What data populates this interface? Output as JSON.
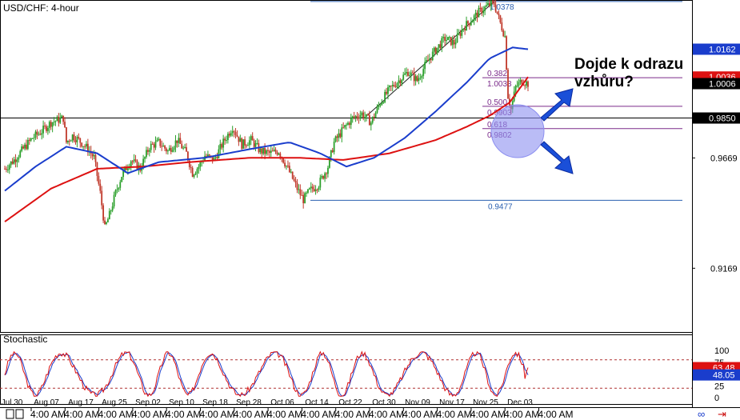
{
  "chart_data": {
    "type": "candlestick",
    "symbol_label": "USD/CHF: 4-hour",
    "main": {
      "ylim": [
        0.888,
        1.0385
      ],
      "ticks": [
        "1.0162",
        "0.9669",
        "0.9169"
      ],
      "price_labels": [
        {
          "text": "1.0162",
          "value": 1.0162,
          "color": "#1a3dcc"
        },
        {
          "text": "1.0036",
          "value": 1.0036,
          "color": "#dd1111"
        },
        {
          "text": "1.0006",
          "value": 1.0006,
          "color": "#000000"
        },
        {
          "text": "0.9850",
          "value": 0.985,
          "color": "#000000"
        }
      ],
      "horizontal_line": 0.985,
      "fibonacci": {
        "high": 1.0378,
        "low": 0.9477,
        "high_label": "1.0378",
        "low_label": "0.9477",
        "levels": [
          {
            "ratio": "0.382",
            "price": "1.0033",
            "value": 1.0033
          },
          {
            "ratio": "0.500",
            "price": "0.9903",
            "value": 0.9903
          },
          {
            "ratio": "0.618",
            "price": "0.9802",
            "value": 0.9802
          }
        ]
      },
      "candles_seed": [
        {
          "i": 0,
          "c": 0.962
        },
        {
          "i": 6,
          "c": 0.966
        },
        {
          "i": 12,
          "c": 0.971
        },
        {
          "i": 18,
          "c": 0.976
        },
        {
          "i": 24,
          "c": 0.979
        },
        {
          "i": 30,
          "c": 0.983
        },
        {
          "i": 34,
          "c": 0.984
        },
        {
          "i": 38,
          "c": 0.985
        },
        {
          "i": 40,
          "c": 0.974
        },
        {
          "i": 44,
          "c": 0.977
        },
        {
          "i": 48,
          "c": 0.975
        },
        {
          "i": 54,
          "c": 0.971
        },
        {
          "i": 58,
          "c": 0.967
        },
        {
          "i": 62,
          "c": 0.951
        },
        {
          "i": 65,
          "c": 0.935
        },
        {
          "i": 68,
          "c": 0.941
        },
        {
          "i": 72,
          "c": 0.951
        },
        {
          "i": 76,
          "c": 0.959
        },
        {
          "i": 82,
          "c": 0.966
        },
        {
          "i": 88,
          "c": 0.962
        },
        {
          "i": 94,
          "c": 0.972
        },
        {
          "i": 100,
          "c": 0.974
        },
        {
          "i": 106,
          "c": 0.97
        },
        {
          "i": 112,
          "c": 0.975
        },
        {
          "i": 118,
          "c": 0.969
        },
        {
          "i": 122,
          "c": 0.96
        },
        {
          "i": 126,
          "c": 0.963
        },
        {
          "i": 130,
          "c": 0.968
        },
        {
          "i": 136,
          "c": 0.966
        },
        {
          "i": 142,
          "c": 0.974
        },
        {
          "i": 148,
          "c": 0.981
        },
        {
          "i": 154,
          "c": 0.973
        },
        {
          "i": 160,
          "c": 0.975
        },
        {
          "i": 166,
          "c": 0.97
        },
        {
          "i": 172,
          "c": 0.969
        },
        {
          "i": 178,
          "c": 0.97
        },
        {
          "i": 184,
          "c": 0.962
        },
        {
          "i": 190,
          "c": 0.953
        },
        {
          "i": 194,
          "c": 0.948
        },
        {
          "i": 198,
          "c": 0.952
        },
        {
          "i": 204,
          "c": 0.955
        },
        {
          "i": 210,
          "c": 0.963
        },
        {
          "i": 214,
          "c": 0.974
        },
        {
          "i": 220,
          "c": 0.98
        },
        {
          "i": 226,
          "c": 0.985
        },
        {
          "i": 232,
          "c": 0.987
        },
        {
          "i": 238,
          "c": 0.983
        },
        {
          "i": 244,
          "c": 0.992
        },
        {
          "i": 250,
          "c": 0.998
        },
        {
          "i": 256,
          "c": 1.002
        },
        {
          "i": 262,
          "c": 1.006
        },
        {
          "i": 268,
          "c": 1.002
        },
        {
          "i": 274,
          "c": 1.01
        },
        {
          "i": 280,
          "c": 1.016
        },
        {
          "i": 286,
          "c": 1.021
        },
        {
          "i": 292,
          "c": 1.019
        },
        {
          "i": 298,
          "c": 1.026
        },
        {
          "i": 304,
          "c": 1.03
        },
        {
          "i": 308,
          "c": 1.033
        },
        {
          "i": 314,
          "c": 1.036
        },
        {
          "i": 318,
          "c": 1.037
        },
        {
          "i": 322,
          "c": 1.028
        },
        {
          "i": 325,
          "c": 1.022
        },
        {
          "i": 327,
          "c": 0.995
        },
        {
          "i": 329,
          "c": 0.989
        },
        {
          "i": 332,
          "c": 0.999
        },
        {
          "i": 336,
          "c": 1.002
        },
        {
          "i": 340,
          "c": 1.0006
        }
      ],
      "ma_blue": [
        {
          "i": 0,
          "v": 0.952
        },
        {
          "i": 20,
          "v": 0.963
        },
        {
          "i": 40,
          "v": 0.972
        },
        {
          "i": 60,
          "v": 0.969
        },
        {
          "i": 80,
          "v": 0.96
        },
        {
          "i": 100,
          "v": 0.965
        },
        {
          "i": 130,
          "v": 0.967
        },
        {
          "i": 160,
          "v": 0.971
        },
        {
          "i": 185,
          "v": 0.974
        },
        {
          "i": 205,
          "v": 0.969
        },
        {
          "i": 222,
          "v": 0.963
        },
        {
          "i": 240,
          "v": 0.967
        },
        {
          "i": 260,
          "v": 0.976
        },
        {
          "i": 280,
          "v": 0.988
        },
        {
          "i": 300,
          "v": 1.001
        },
        {
          "i": 315,
          "v": 1.012
        },
        {
          "i": 330,
          "v": 1.017
        },
        {
          "i": 340,
          "v": 1.0162
        }
      ],
      "ma_red": [
        {
          "i": 0,
          "v": 0.938
        },
        {
          "i": 30,
          "v": 0.953
        },
        {
          "i": 60,
          "v": 0.962
        },
        {
          "i": 90,
          "v": 0.963
        },
        {
          "i": 120,
          "v": 0.965
        },
        {
          "i": 160,
          "v": 0.967
        },
        {
          "i": 190,
          "v": 0.967
        },
        {
          "i": 220,
          "v": 0.966
        },
        {
          "i": 250,
          "v": 0.969
        },
        {
          "i": 280,
          "v": 0.975
        },
        {
          "i": 300,
          "v": 0.981
        },
        {
          "i": 315,
          "v": 0.986
        },
        {
          "i": 328,
          "v": 0.992
        },
        {
          "i": 340,
          "v": 1.0036
        }
      ]
    },
    "annotation": {
      "text_line1": "Dojde k odrazu",
      "text_line2": "vzhůru?"
    },
    "stochastic": {
      "title": "Stochastic",
      "ylim": [
        0,
        100
      ],
      "ticks": [
        "100",
        "75",
        "50",
        "25",
        "0"
      ],
      "tick_values": [
        100,
        75,
        50,
        25,
        0
      ],
      "overbought": 80,
      "oversold": 20,
      "value_labels": [
        {
          "text": "63.48",
          "value": 63.48,
          "color": "#dd1111"
        },
        {
          "text": "48.05",
          "value": 48.05,
          "color": "#1a3dcc"
        }
      ]
    },
    "x_axis": {
      "date_labels": [
        "Jul 30",
        "Aug 07",
        "Aug 17",
        "Aug 25",
        "Sep 02",
        "Sep 10",
        "Sep 18",
        "Sep 28",
        "Oct 06",
        "Oct 14",
        "Oct 22",
        "Oct 30",
        "Nov 09",
        "Nov 17",
        "Nov 25",
        "Dec 03"
      ],
      "time_labels": [
        "4:00 AM",
        "4:00 AM",
        "4:00 AM",
        "4:00 AM",
        "4:00 AM",
        "4:00 AM",
        "4:00 AM",
        "4:00 AM",
        "4:00 AM",
        "4:00 AM",
        "4:00 AM",
        "4:00 AM",
        "4:00 AM",
        "4:00 AM",
        "4:00 AM",
        "4:00 AM"
      ]
    },
    "colors": {
      "bull": "#2ca02c",
      "bear": "#c0392b",
      "ma_blue": "#1a3dcc",
      "ma_red": "#dd1111",
      "fib": "#7a2a8a",
      "fib_edge": "#2a5fb0",
      "arrow": "#1a4fd8",
      "circle": "#8c8ff0"
    }
  }
}
